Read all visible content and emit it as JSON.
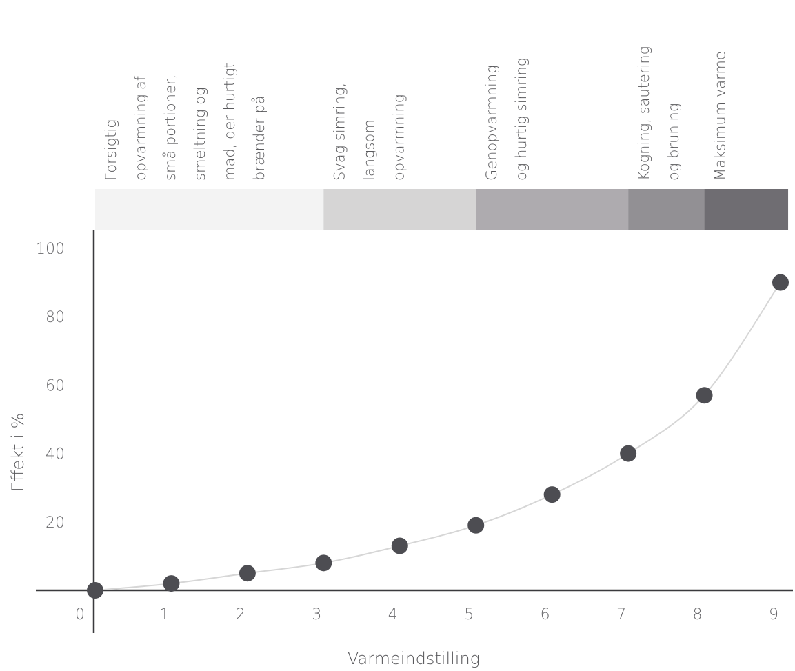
{
  "chart_data": {
    "type": "scatter",
    "title": "",
    "xlabel": "Varmeindstilling",
    "ylabel": "Effekt i %",
    "x": [
      0,
      1,
      2,
      3,
      4,
      5,
      6,
      7,
      8,
      9
    ],
    "y": [
      0,
      2,
      5,
      8,
      13,
      19,
      28,
      40,
      57,
      90
    ],
    "xlim": [
      0,
      9
    ],
    "ylim": [
      0,
      100
    ],
    "x_ticks": [
      "0",
      "1",
      "2",
      "3",
      "4",
      "5",
      "6",
      "7",
      "8",
      "9"
    ],
    "y_ticks": [
      "20",
      "40",
      "60",
      "80",
      "100"
    ],
    "y_tick_values": [
      20,
      40,
      60,
      80,
      100
    ],
    "trend_line": "smooth curve through points",
    "grid": false,
    "point_color": "#4d4d52",
    "curve_color": "#d6d6d6",
    "axis_color": "#3a3a3d",
    "zones": [
      {
        "x_start": 0,
        "x_end": 3.0,
        "color": "#f3f3f3",
        "lines": [
          "Forsigtig",
          "opvarmning af",
          "små portioner,",
          "smeltning og",
          "mad, der hurtigt",
          "brænder på"
        ]
      },
      {
        "x_start": 3.0,
        "x_end": 5.0,
        "color": "#d6d5d5",
        "lines": [
          "Svag simring,",
          "langsom",
          "opvarmning"
        ]
      },
      {
        "x_start": 5.0,
        "x_end": 7.0,
        "color": "#aeabaf",
        "lines": [
          "Genopvarmning",
          "og hurtig simring"
        ]
      },
      {
        "x_start": 7.0,
        "x_end": 8.0,
        "color": "#929094",
        "lines": [
          "Kogning, sautering",
          "og bruning"
        ]
      },
      {
        "x_start": 8.0,
        "x_end": 9.1,
        "color": "#6f6d72",
        "lines": [
          "Maksimum varme"
        ]
      }
    ]
  }
}
